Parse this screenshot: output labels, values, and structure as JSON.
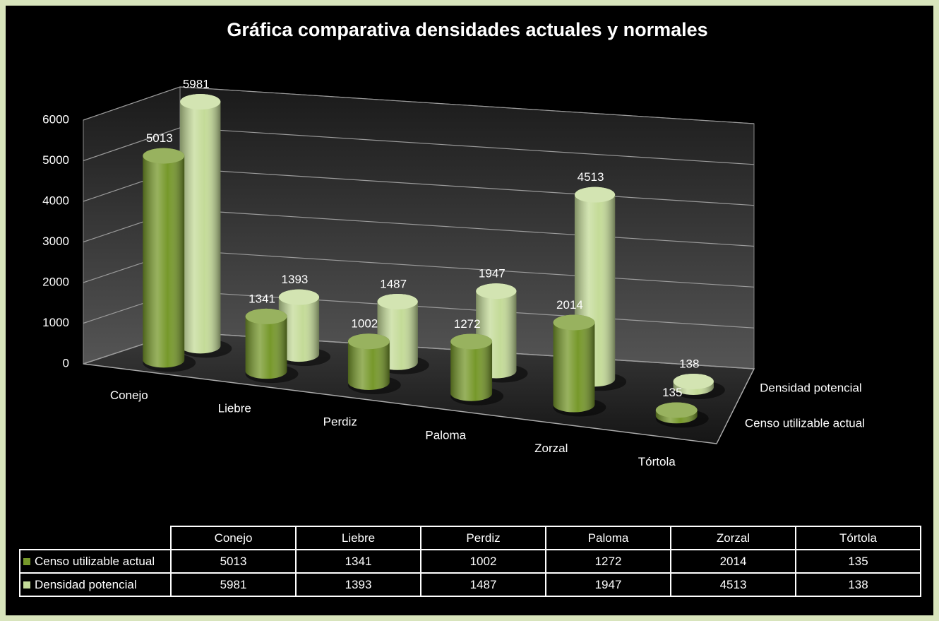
{
  "chart_data": {
    "type": "cylinder3d",
    "title": "Gráfica comparativa densidades actuales y normales",
    "categories": [
      "Conejo",
      "Liebre",
      "Perdiz",
      "Paloma",
      "Zorzal",
      "Tórtola"
    ],
    "series": [
      {
        "name": "Censo utilizable actual",
        "color": "#76982a",
        "values": [
          5013,
          1341,
          1002,
          1272,
          2014,
          135
        ]
      },
      {
        "name": "Densidad potencial",
        "color": "#c4db98",
        "values": [
          5981,
          1393,
          1487,
          1947,
          4513,
          138
        ]
      }
    ],
    "ylim": [
      0,
      6000
    ],
    "yticks": [
      0,
      1000,
      2000,
      3000,
      4000,
      5000,
      6000
    ],
    "grid": true,
    "data_table": true
  }
}
